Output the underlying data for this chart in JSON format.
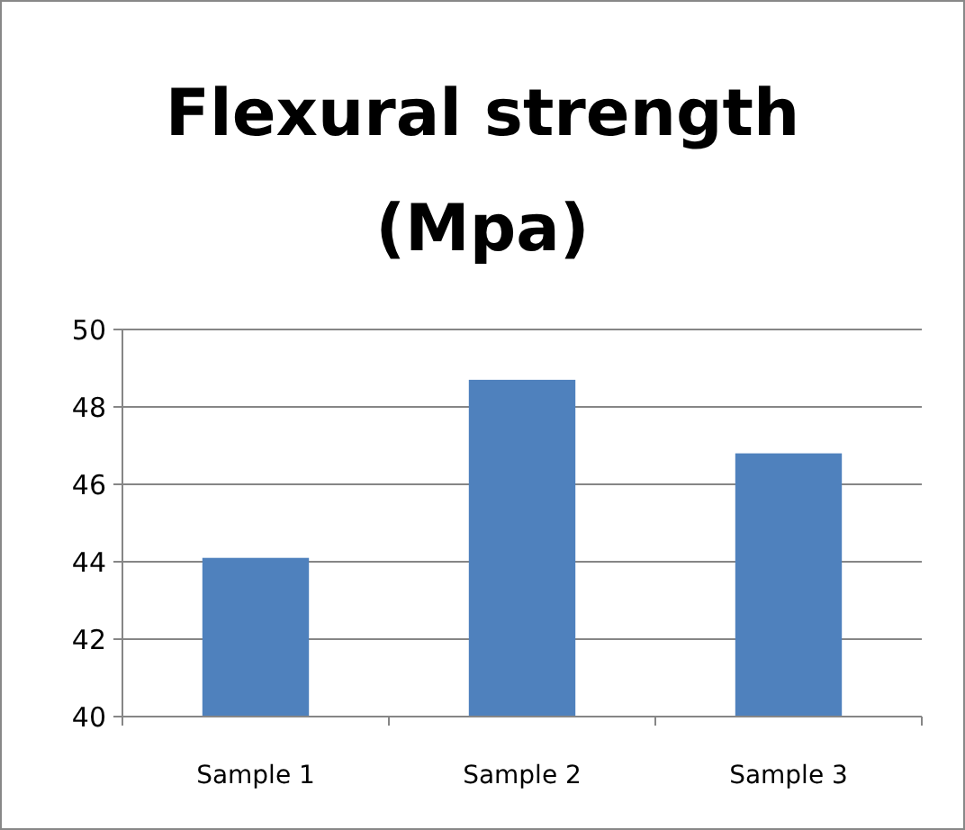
{
  "chart_data": {
    "type": "bar",
    "title": "Flexural strength (Mpa)",
    "categories": [
      "Sample 1",
      "Sample 2",
      "Sample 3"
    ],
    "values": [
      44.1,
      48.7,
      46.8
    ],
    "color": "#4f81bd",
    "ylim": [
      40,
      50
    ],
    "yticks": [
      40,
      42,
      44,
      46,
      48,
      50
    ],
    "grid": "y"
  }
}
